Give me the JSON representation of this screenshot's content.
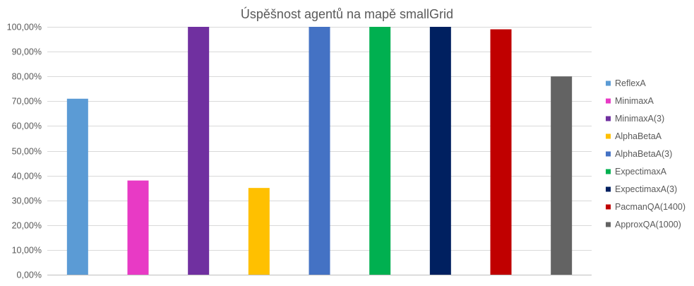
{
  "chart_data": {
    "type": "bar",
    "title": "Úspěšnost agentů na mapě smallGrid",
    "xlabel": "",
    "ylabel": "",
    "ylim": [
      0,
      100
    ],
    "y_ticks": [
      "0,00%",
      "10,00%",
      "20,00%",
      "30,00%",
      "40,00%",
      "50,00%",
      "60,00%",
      "70,00%",
      "80,00%",
      "90,00%",
      "100,00%"
    ],
    "grid": true,
    "legend_position": "right",
    "series": [
      {
        "name": "ReflexA",
        "value": 71,
        "color": "#5b9bd5"
      },
      {
        "name": "MinimaxA",
        "value": 38,
        "color": "#e83ac5"
      },
      {
        "name": "MinimaxA(3)",
        "value": 100,
        "color": "#7030a0"
      },
      {
        "name": "AlphaBetaA",
        "value": 35,
        "color": "#ffc000"
      },
      {
        "name": "AlphaBetaA(3)",
        "value": 100,
        "color": "#4472c4"
      },
      {
        "name": "ExpectimaxA",
        "value": 100,
        "color": "#00b050"
      },
      {
        "name": "ExpectimaxA(3)",
        "value": 100,
        "color": "#002060"
      },
      {
        "name": "PacmanQA(1400)",
        "value": 99,
        "color": "#c00000"
      },
      {
        "name": "ApproxQA(1000)",
        "value": 80,
        "color": "#636363"
      }
    ]
  }
}
